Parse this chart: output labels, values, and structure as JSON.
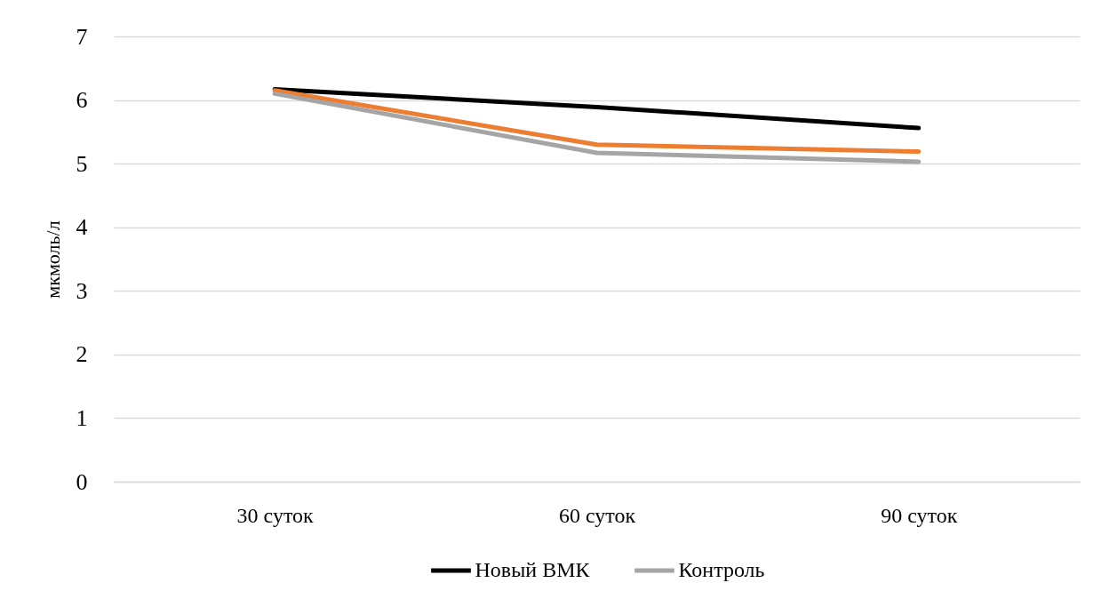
{
  "chart_data": {
    "type": "line",
    "ylabel": "мкмоль/л",
    "categories": [
      "30 суток",
      "60 суток",
      "90 суток"
    ],
    "series": [
      {
        "name": "Новый ВМК",
        "color": "#000000",
        "values": [
          6.17,
          5.89,
          5.56
        ]
      },
      {
        "color": "#ed7d31",
        "values": [
          6.15,
          5.3,
          5.19
        ]
      },
      {
        "name": "Контроль",
        "color": "#a5a5a5",
        "values": [
          6.1,
          5.17,
          5.03
        ]
      }
    ],
    "ylim": [
      0,
      7
    ],
    "yticks": [
      0,
      1,
      2,
      3,
      4,
      5,
      6,
      7
    ],
    "grid": "y",
    "legend": "bottom",
    "line_style": "solid"
  }
}
